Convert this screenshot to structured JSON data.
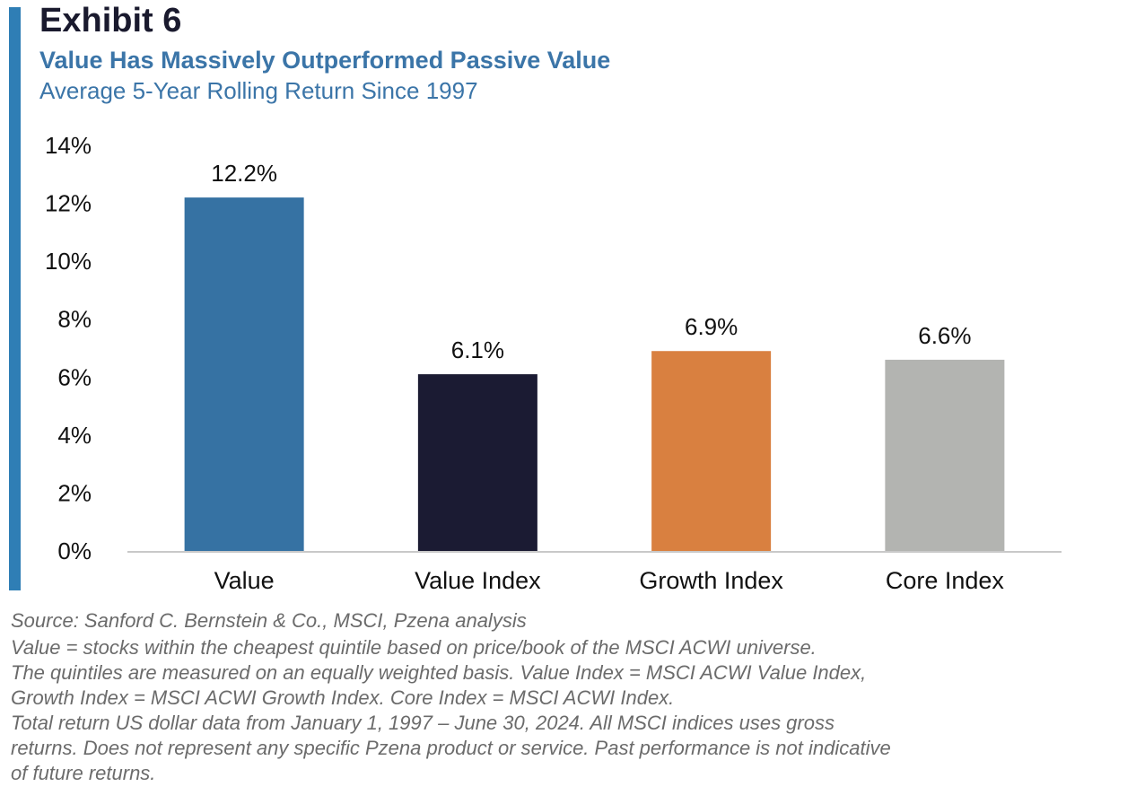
{
  "exhibit_label": "Exhibit 6",
  "title": "Value Has Massively Outperformed Passive Value",
  "subtitle": "Average 5-Year Rolling Return Since 1997",
  "footnotes": [
    "Source: Sanford C. Bernstein & Co., MSCI, Pzena analysis",
    "Value = stocks within the cheapest quintile based on price/book of the MSCI ACWI universe.",
    "The quintiles are measured on an equally weighted basis. Value Index = MSCI ACWI Value Index,\nGrowth Index = MSCI ACWI Growth Index. Core Index = MSCI ACWI Index.",
    "Total return US dollar data from January 1, 1997 – June 30, 2024. All MSCI indices uses gross\nreturns. Does not represent any specific Pzena product or service. Past performance is not indicative\nof future returns."
  ],
  "colors": {
    "accent_bar": "#2f7eb5",
    "title": "#3b75a8"
  },
  "chart_data": {
    "type": "bar",
    "title": "Value Has Massively Outperformed Passive Value",
    "subtitle": "Average 5-Year Rolling Return Since 1997",
    "xlabel": "",
    "ylabel": "",
    "categories": [
      "Value",
      "Value Index",
      "Growth Index",
      "Core Index"
    ],
    "values": [
      12.2,
      6.1,
      6.9,
      6.6
    ],
    "value_labels": [
      "12.2%",
      "6.1%",
      "6.9%",
      "6.6%"
    ],
    "bar_colors": [
      "#3672a3",
      "#1b1b33",
      "#d98040",
      "#b3b4b1"
    ],
    "ylim": [
      0,
      14
    ],
    "yticks": [
      0,
      2,
      4,
      6,
      8,
      10,
      12,
      14
    ],
    "ytick_labels": [
      "0%",
      "2%",
      "4%",
      "6%",
      "8%",
      "10%",
      "12%",
      "14%"
    ],
    "grid": false,
    "legend": "none"
  }
}
